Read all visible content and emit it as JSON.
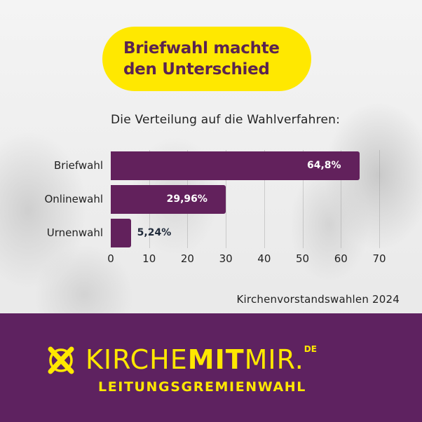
{
  "header": {
    "title_line1": "Briefwahl machte",
    "title_line2": "den Unterschied",
    "subtitle": "Die Verteilung auf die Wahlverfahren:"
  },
  "chart_data": {
    "type": "bar",
    "orientation": "horizontal",
    "title": "Die Verteilung auf die Wahlverfahren:",
    "categories": [
      "Briefwahl",
      "Onlinewahl",
      "Urnenwahl"
    ],
    "values": [
      64.8,
      29.96,
      5.24
    ],
    "value_labels": [
      "64,8%",
      "29,96%",
      "5,24%"
    ],
    "xlabel": "",
    "ylabel": "",
    "xlim": [
      0,
      70
    ],
    "xticks": [
      "0",
      "10",
      "20",
      "30",
      "40",
      "50",
      "60",
      "70"
    ],
    "grid": true,
    "bar_color": "#62215c",
    "source": "Kirchenvorstandswahlen 2024"
  },
  "footer": {
    "brand_light_1": "KIRCHE",
    "brand_bold": "MIT",
    "brand_light_2": "MIR",
    "brand_dot": ".",
    "brand_tld": "DE",
    "tagline": "LEITUNGSGREMIENWAHL",
    "logo_icon": "ballot-cross-icon"
  },
  "colors": {
    "accent_yellow": "#ffe800",
    "brand_purple": "#5e2260",
    "bar_purple": "#62215c",
    "title_text": "#5a2350"
  }
}
